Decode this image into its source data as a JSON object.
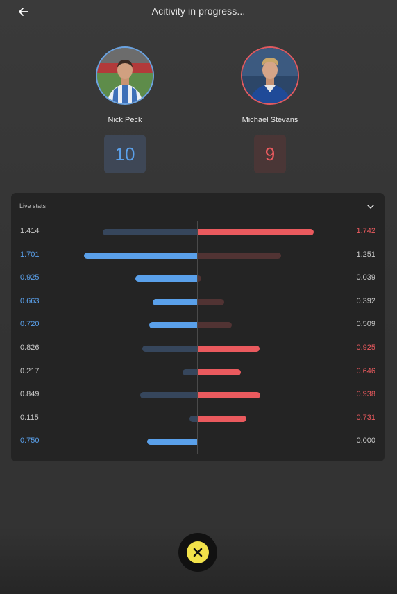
{
  "header": {
    "title": "Acitivity in progress..."
  },
  "players": [
    {
      "name": "Nick Peck",
      "score": "10",
      "color": "#5aa0ea"
    },
    {
      "name": "Michael Stevans",
      "score": "9",
      "color": "#ea5a5e"
    }
  ],
  "stats": {
    "title": "Live stats",
    "rows": [
      {
        "left": "1.414",
        "right": "1.742"
      },
      {
        "left": "1.701",
        "right": "1.251"
      },
      {
        "left": "0.925",
        "right": "0.039"
      },
      {
        "left": "0.663",
        "right": "0.392"
      },
      {
        "left": "0.720",
        "right": "0.509"
      },
      {
        "left": "0.826",
        "right": "0.925"
      },
      {
        "left": "0.217",
        "right": "0.646"
      },
      {
        "left": "0.849",
        "right": "0.938"
      },
      {
        "left": "0.115",
        "right": "0.731"
      },
      {
        "left": "0.750",
        "right": "0.000"
      }
    ]
  },
  "colors": {
    "blue": "#5aa0ea",
    "blue_dim": "#36465c",
    "red": "#ea5a5e",
    "red_dim": "#513333",
    "neutral_text": "#c8c8c8",
    "close_button": "#f2e24a"
  },
  "icons": {
    "back": "arrow-left-icon",
    "collapse": "chevron-down-icon",
    "close": "close-icon"
  }
}
